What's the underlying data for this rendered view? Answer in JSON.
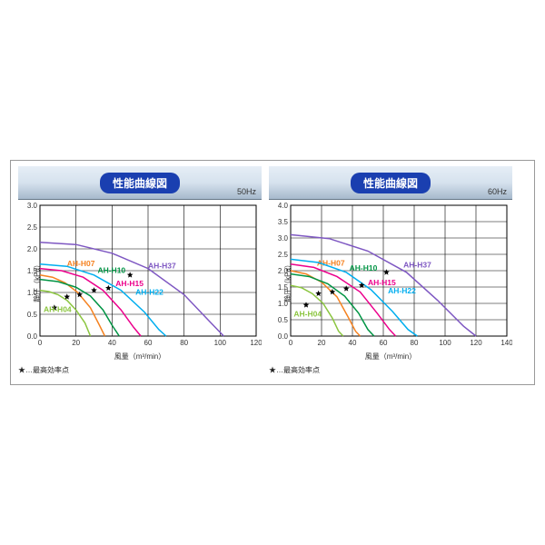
{
  "title": "性能曲線図",
  "footnote": "★…最高効率点",
  "xlabel": "風量（m³/min）",
  "ylabel": "静圧（kPa）",
  "grid_color": "#000000",
  "grid_width": 0.6,
  "background_color": "#ffffff",
  "axis_fontsize": 8,
  "label_fontsize": 8,
  "title_bg": "#1a3fb0",
  "title_color": "#ffffff",
  "charts": [
    {
      "hz": "50Hz",
      "xlim": [
        0,
        120
      ],
      "xtick_step": 20,
      "ylim": [
        0,
        3.0
      ],
      "ytick_step": 0.5,
      "series": [
        {
          "name": "AH-H04",
          "color": "#8bc53f",
          "label_xy": [
            2,
            0.55
          ],
          "star": [
            8,
            0.65
          ],
          "points": [
            [
              0,
              1.05
            ],
            [
              5,
              1.02
            ],
            [
              10,
              0.95
            ],
            [
              15,
              0.82
            ],
            [
              20,
              0.6
            ],
            [
              25,
              0.3
            ],
            [
              28,
              0.0
            ]
          ]
        },
        {
          "name": "AH-H07",
          "color": "#f58220",
          "label_xy": [
            15,
            1.6
          ],
          "star": [
            15,
            0.9
          ],
          "points": [
            [
              0,
              1.4
            ],
            [
              7,
              1.35
            ],
            [
              14,
              1.22
            ],
            [
              21,
              1.0
            ],
            [
              28,
              0.65
            ],
            [
              33,
              0.25
            ],
            [
              36,
              0.0
            ]
          ]
        },
        {
          "name": "AH-H10",
          "color": "#009444",
          "label_xy": [
            32,
            1.45
          ],
          "star": [
            22,
            0.95
          ],
          "points": [
            [
              0,
              1.3
            ],
            [
              10,
              1.25
            ],
            [
              20,
              1.12
            ],
            [
              28,
              0.92
            ],
            [
              35,
              0.6
            ],
            [
              40,
              0.25
            ],
            [
              44,
              0.0
            ]
          ]
        },
        {
          "name": "AH-H15",
          "color": "#ec008c",
          "label_xy": [
            42,
            1.15
          ],
          "star": [
            30,
            1.05
          ],
          "points": [
            [
              0,
              1.55
            ],
            [
              12,
              1.5
            ],
            [
              24,
              1.35
            ],
            [
              35,
              1.05
            ],
            [
              45,
              0.6
            ],
            [
              52,
              0.2
            ],
            [
              56,
              0.0
            ]
          ]
        },
        {
          "name": "AH-H22",
          "color": "#00aeef",
          "label_xy": [
            53,
            0.95
          ],
          "star": [
            38,
            1.1
          ],
          "points": [
            [
              0,
              1.65
            ],
            [
              15,
              1.6
            ],
            [
              30,
              1.4
            ],
            [
              45,
              1.05
            ],
            [
              58,
              0.55
            ],
            [
              66,
              0.15
            ],
            [
              70,
              0.0
            ]
          ]
        },
        {
          "name": "AH-H37",
          "color": "#7e57c2",
          "label_xy": [
            60,
            1.55
          ],
          "star": [
            50,
            1.4
          ],
          "points": [
            [
              0,
              2.15
            ],
            [
              20,
              2.1
            ],
            [
              40,
              1.9
            ],
            [
              60,
              1.55
            ],
            [
              80,
              0.95
            ],
            [
              95,
              0.3
            ],
            [
              102,
              0.0
            ]
          ]
        }
      ]
    },
    {
      "hz": "60Hz",
      "xlim": [
        0,
        140
      ],
      "xtick_step": 20,
      "ylim": [
        0,
        4.0
      ],
      "ytick_step": 0.5,
      "series": [
        {
          "name": "AH-H04",
          "color": "#8bc53f",
          "label_xy": [
            2,
            0.6
          ],
          "star": [
            10,
            0.95
          ],
          "points": [
            [
              0,
              1.55
            ],
            [
              7,
              1.48
            ],
            [
              14,
              1.3
            ],
            [
              21,
              1.0
            ],
            [
              27,
              0.55
            ],
            [
              31,
              0.15
            ],
            [
              34,
              0.0
            ]
          ]
        },
        {
          "name": "AH-H07",
          "color": "#f58220",
          "label_xy": [
            17,
            2.15
          ],
          "star": [
            18,
            1.3
          ],
          "points": [
            [
              0,
              2.0
            ],
            [
              10,
              1.9
            ],
            [
              20,
              1.65
            ],
            [
              30,
              1.2
            ],
            [
              37,
              0.6
            ],
            [
              42,
              0.15
            ],
            [
              45,
              0.0
            ]
          ]
        },
        {
          "name": "AH-H10",
          "color": "#009444",
          "label_xy": [
            38,
            2.0
          ],
          "star": [
            27,
            1.35
          ],
          "points": [
            [
              0,
              1.9
            ],
            [
              12,
              1.82
            ],
            [
              24,
              1.6
            ],
            [
              35,
              1.22
            ],
            [
              44,
              0.7
            ],
            [
              50,
              0.2
            ],
            [
              54,
              0.0
            ]
          ]
        },
        {
          "name": "AH-H15",
          "color": "#ec008c",
          "label_xy": [
            50,
            1.55
          ],
          "star": [
            36,
            1.45
          ],
          "points": [
            [
              0,
              2.2
            ],
            [
              15,
              2.1
            ],
            [
              30,
              1.82
            ],
            [
              45,
              1.35
            ],
            [
              56,
              0.7
            ],
            [
              64,
              0.2
            ],
            [
              68,
              0.0
            ]
          ]
        },
        {
          "name": "AH-H22",
          "color": "#00aeef",
          "label_xy": [
            63,
            1.3
          ],
          "star": [
            46,
            1.55
          ],
          "points": [
            [
              0,
              2.35
            ],
            [
              18,
              2.25
            ],
            [
              36,
              1.95
            ],
            [
              52,
              1.42
            ],
            [
              66,
              0.75
            ],
            [
              76,
              0.2
            ],
            [
              82,
              0.0
            ]
          ]
        },
        {
          "name": "AH-H37",
          "color": "#7e57c2",
          "label_xy": [
            73,
            2.1
          ],
          "star": [
            62,
            1.95
          ],
          "points": [
            [
              0,
              3.1
            ],
            [
              25,
              2.98
            ],
            [
              50,
              2.6
            ],
            [
              75,
              1.95
            ],
            [
              95,
              1.1
            ],
            [
              112,
              0.3
            ],
            [
              120,
              0.0
            ]
          ]
        }
      ]
    }
  ]
}
